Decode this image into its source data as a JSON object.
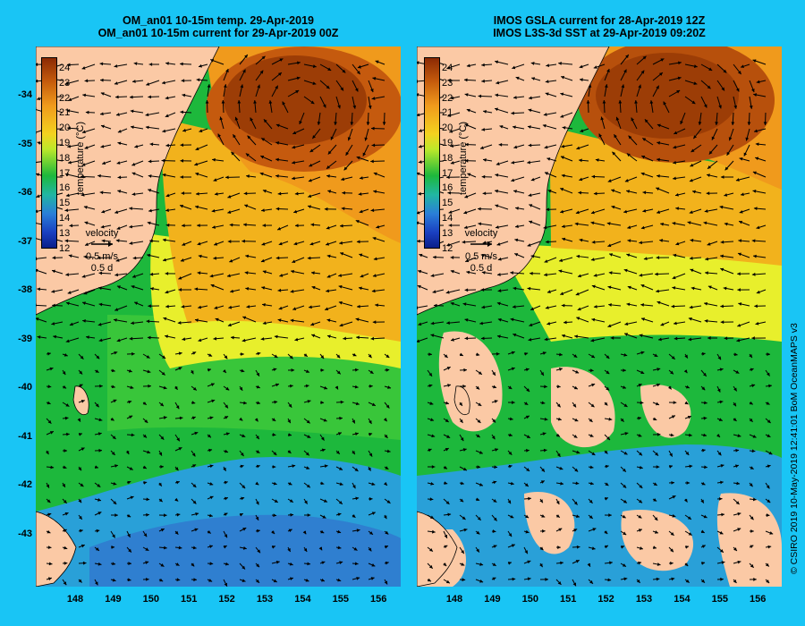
{
  "panels": [
    {
      "title_line1": "OM_an01 10-15m temp. 29-Apr-2019",
      "title_line2": "OM_an01 10-15m current for 29-Apr-2019 00Z",
      "colorbar_title": "temperature (°C)",
      "legend_title": "velocity",
      "legend_speed": "0.5 m/s",
      "legend_time": "0.5 d"
    },
    {
      "title_line1": "IMOS GSLA current for 28-Apr-2019 12Z",
      "title_line2": "IMOS L3S-3d SST at 29-Apr-2019 09:20Z",
      "colorbar_title": "temperature (°C)",
      "legend_title": "velocity",
      "legend_speed": "0.5 m/s",
      "legend_time": "0.5 d"
    }
  ],
  "x_ticks": [
    "148",
    "149",
    "150",
    "151",
    "152",
    "153",
    "154",
    "155",
    "156"
  ],
  "y_ticks": [
    "-34",
    "-35",
    "-36",
    "-37",
    "-38",
    "-39",
    "-40",
    "-41",
    "-42",
    "-43"
  ],
  "colorbar_labels": [
    "24",
    "23",
    "22",
    "21",
    "20",
    "19",
    "18",
    "17",
    "16",
    "15",
    "14",
    "13",
    "12"
  ],
  "colors": {
    "background": "#19c5f5",
    "land": "#fbc9a5",
    "warm": "#9c3d06",
    "orange": "#f09a1c",
    "yellow": "#e8ef2c",
    "green": "#1db83c",
    "cool": "#29a0d8"
  },
  "credit": "© CSIRO 2019   10-May-2019 12:41:01 BoM OceanMAPS v3"
}
